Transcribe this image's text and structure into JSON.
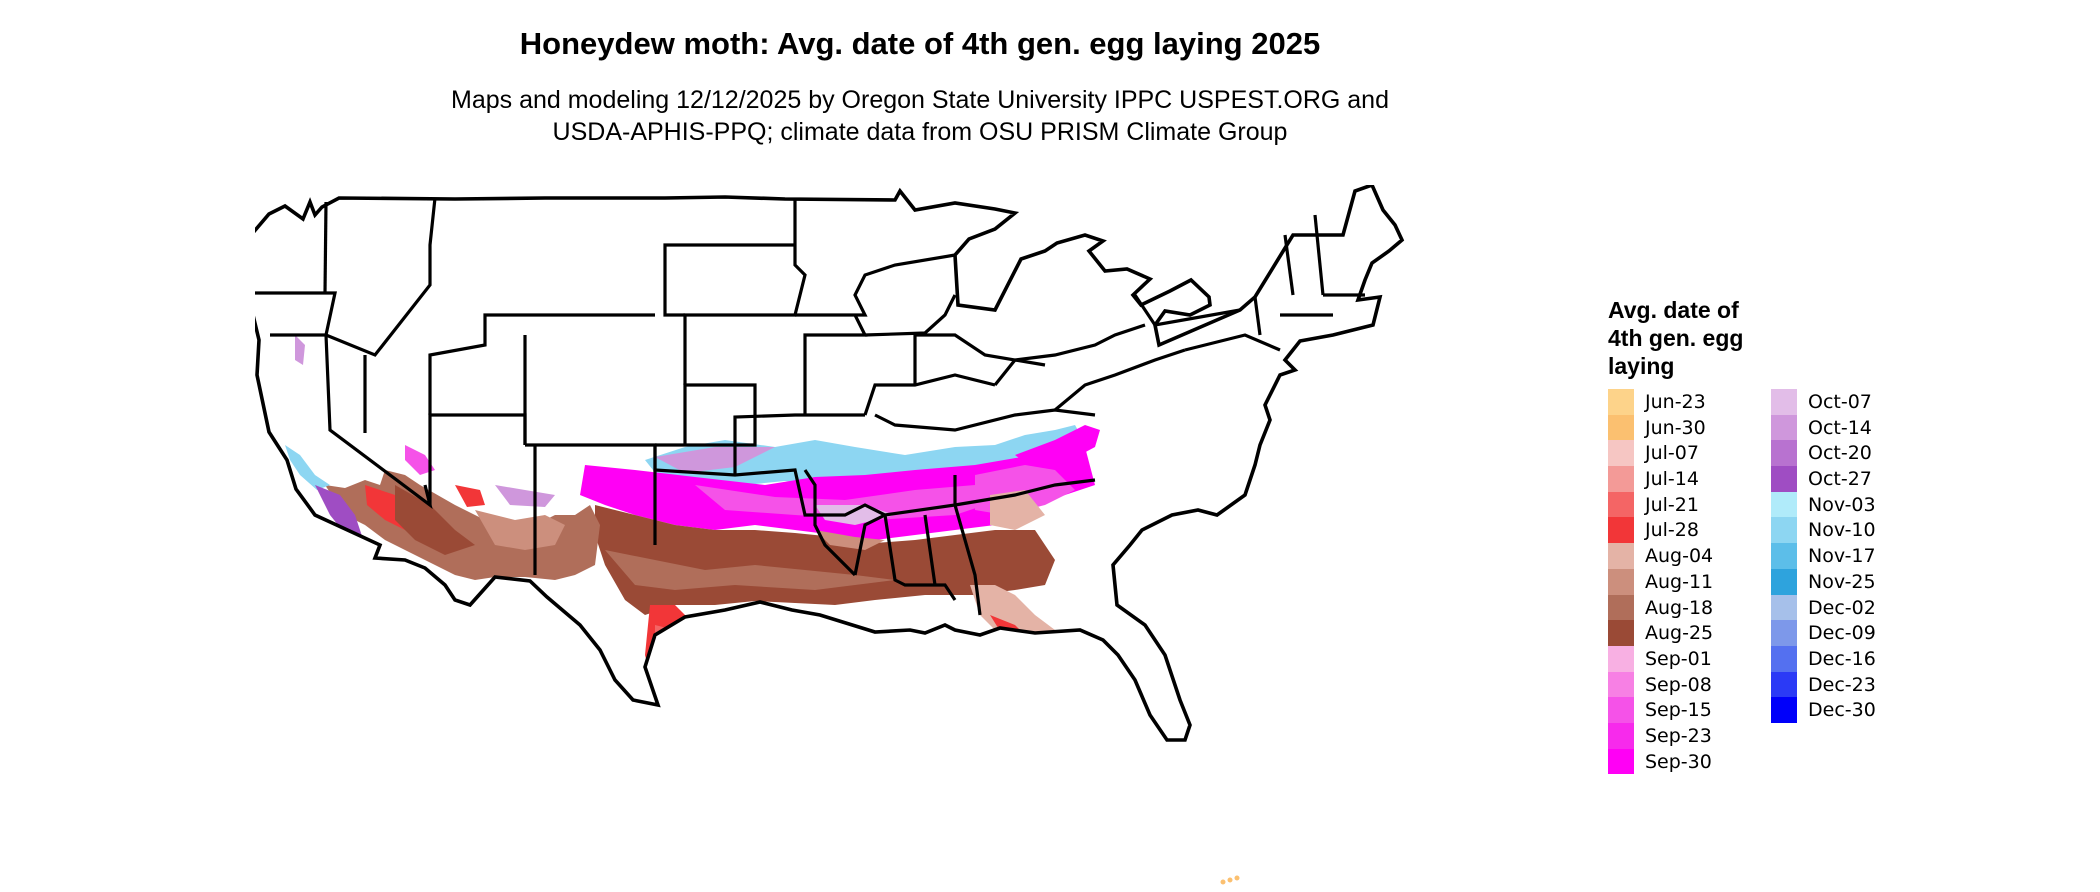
{
  "title": "Honeydew moth: Avg. date of 4th gen. egg laying 2025",
  "subtitle_lines": [
    "Maps and modeling 12/12/2025 by Oregon State University IPPC USPEST.ORG and",
    "USDA-APHIS-PPQ; climate data from OSU PRISM Climate Group"
  ],
  "legend": {
    "title_lines": [
      "Avg. date of",
      "4th gen. egg",
      "laying"
    ],
    "column1": [
      {
        "label": "Jun-23",
        "color": "#FDD38A"
      },
      {
        "label": "Jun-30",
        "color": "#FBC070"
      },
      {
        "label": "Jul-07",
        "color": "#F6C6C3"
      },
      {
        "label": "Jul-14",
        "color": "#F39A97"
      },
      {
        "label": "Jul-21",
        "color": "#F46565"
      },
      {
        "label": "Jul-28",
        "color": "#F23638"
      },
      {
        "label": "Aug-04",
        "color": "#E4B3A6"
      },
      {
        "label": "Aug-11",
        "color": "#CC8F7D"
      },
      {
        "label": "Aug-18",
        "color": "#B06E5A"
      },
      {
        "label": "Aug-25",
        "color": "#9A4A36"
      },
      {
        "label": "Sep-01",
        "color": "#F8B0E3"
      },
      {
        "label": "Sep-08",
        "color": "#F780E4"
      },
      {
        "label": "Sep-15",
        "color": "#F552E8"
      },
      {
        "label": "Sep-23",
        "color": "#F72AEC"
      },
      {
        "label": "Sep-30",
        "color": "#FF00F5"
      }
    ],
    "column2": [
      {
        "label": "Oct-07",
        "color": "#E2BDE8"
      },
      {
        "label": "Oct-14",
        "color": "#CF97DC"
      },
      {
        "label": "Oct-20",
        "color": "#B872D0"
      },
      {
        "label": "Oct-27",
        "color": "#9F4DC3"
      },
      {
        "label": "Nov-03",
        "color": "#B0EBFA"
      },
      {
        "label": "Nov-10",
        "color": "#8DD6F2"
      },
      {
        "label": "Nov-17",
        "color": "#5CBEE9"
      },
      {
        "label": "Nov-25",
        "color": "#2EA3DD"
      },
      {
        "label": "Dec-02",
        "color": "#A6C0EA"
      },
      {
        "label": "Dec-09",
        "color": "#7D98EA"
      },
      {
        "label": "Dec-16",
        "color": "#5470F0"
      },
      {
        "label": "Dec-23",
        "color": "#2B3AF6"
      },
      {
        "label": "Dec-30",
        "color": "#0000FA"
      }
    ]
  }
}
